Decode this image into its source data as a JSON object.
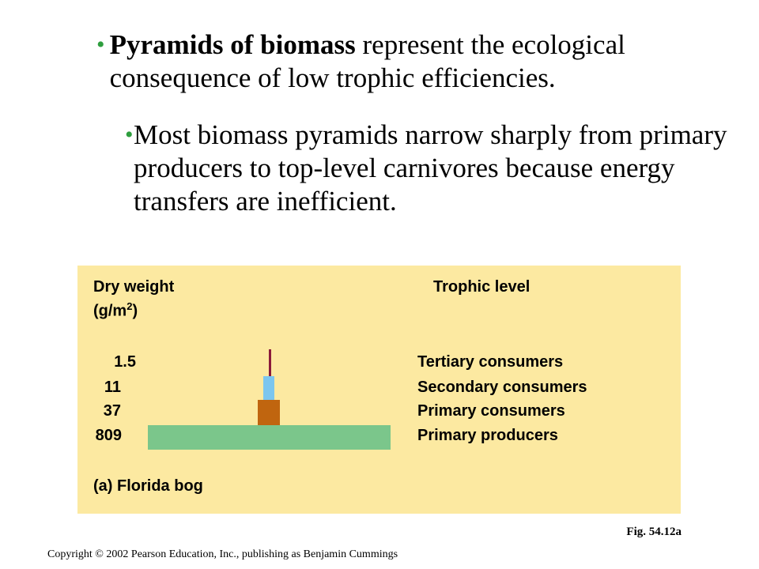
{
  "bullets": {
    "b1_bold": "Pyramids of biomass",
    "b1_rest": " represent the ecological consequence of low trophic efficiencies.",
    "b2_text": "Most biomass pyramids narrow sharply from primary producers to top-level carnivores because energy transfers are inefficient.",
    "bullet_char": "•"
  },
  "diagram": {
    "left_header_1": "Dry weight",
    "left_header_2": "(g/m",
    "left_header_sup": "2",
    "left_header_3": ")",
    "right_header": "Trophic level",
    "caption": "(a) Florida bog",
    "levels": [
      {
        "value": "1.5",
        "label": "Tertiary consumers",
        "color": "#8b1a3a"
      },
      {
        "value": "11",
        "label": "Secondary consumers",
        "color": "#7cc6ef"
      },
      {
        "value": "37",
        "label": "Primary consumers",
        "color": "#c0650f"
      },
      {
        "value": "809",
        "label": "Primary producers",
        "color": "#7bc68b"
      }
    ],
    "panel_color": "#fce9a1"
  },
  "fig_label": "Fig. 54.12a",
  "copyright": "Copyright © 2002 Pearson Education, Inc., publishing as Benjamin Cummings"
}
